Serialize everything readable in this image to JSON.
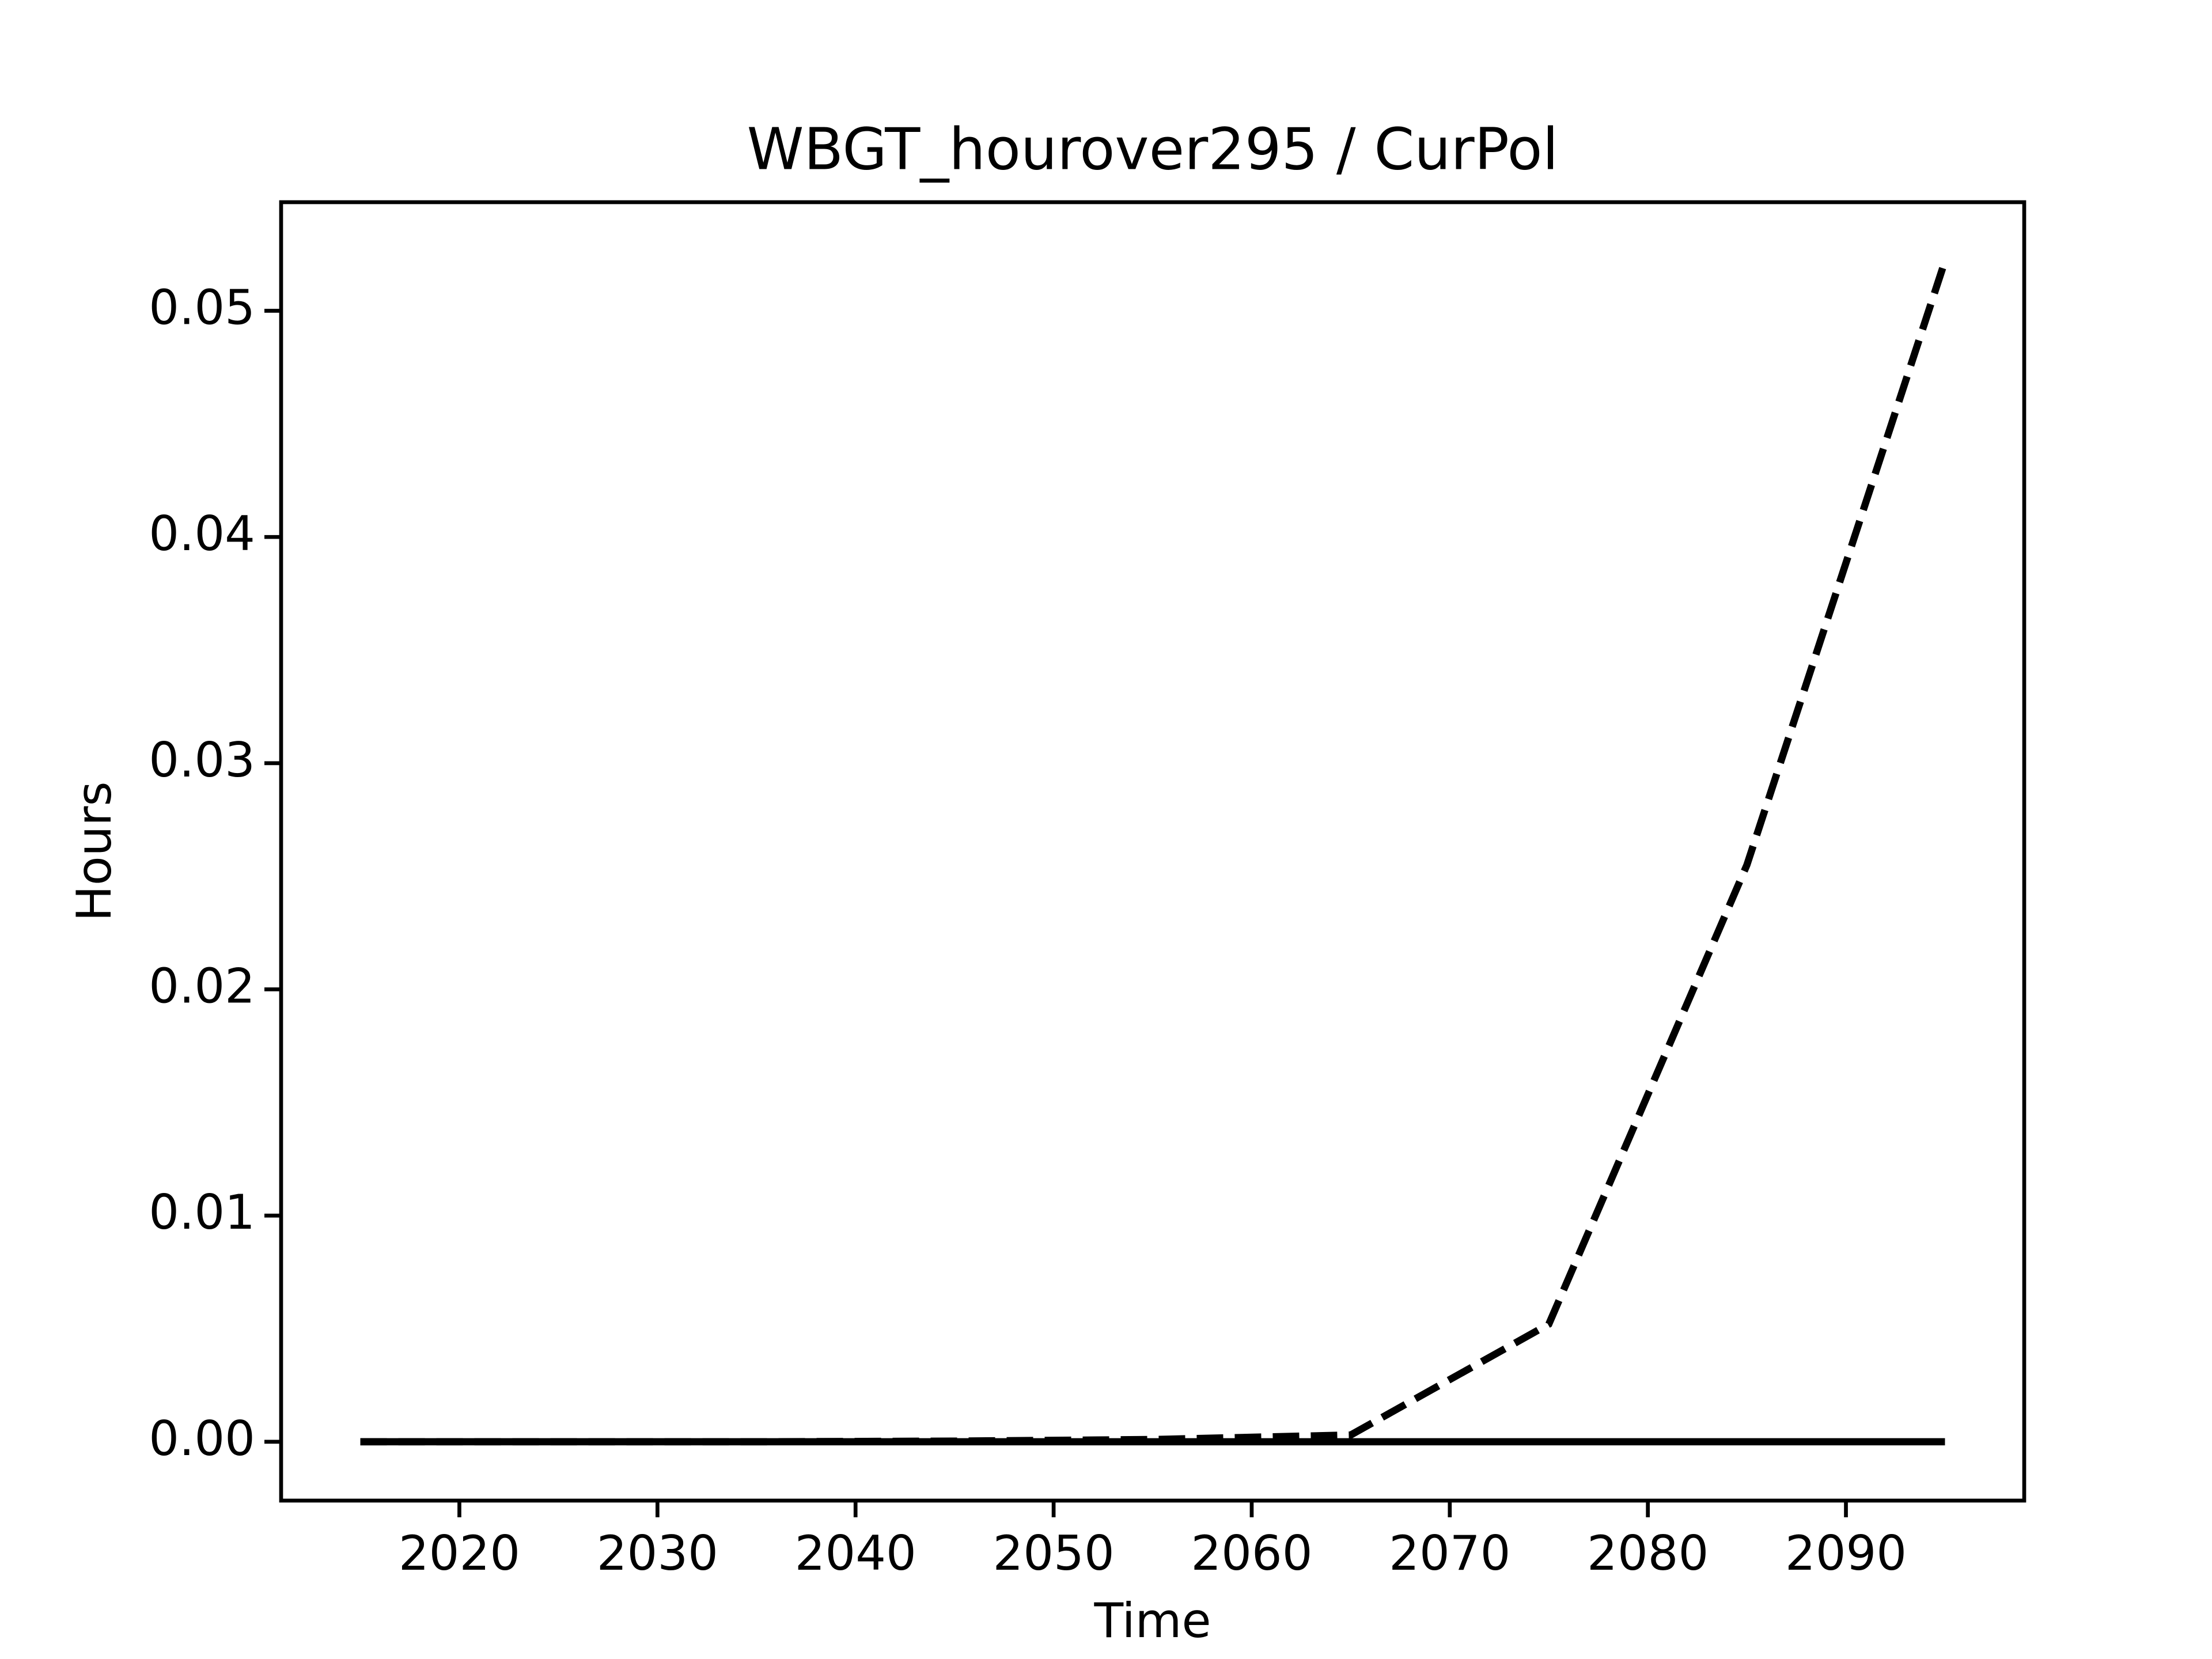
{
  "chart_data": {
    "type": "line",
    "title": "WBGT_hourover295 / CurPol",
    "x_label": "Time",
    "y_label": "Hours",
    "x": [
      2015,
      2025,
      2035,
      2045,
      2055,
      2065,
      2075,
      2085,
      2095
    ],
    "series": [
      {
        "color": "#000000",
        "linestyle": "dashed",
        "values": [
          0,
          0,
          0,
          3e-05,
          0.0001,
          0.0003,
          0.0052,
          0.0255,
          0.0522
        ]
      },
      {
        "color": "#000000",
        "linestyle": "solid",
        "values": [
          0,
          0,
          0,
          0,
          0,
          0,
          0,
          0,
          0
        ]
      }
    ],
    "xlim": [
      2011,
      2099
    ],
    "xticks": [
      2020,
      2030,
      2040,
      2050,
      2060,
      2070,
      2080,
      2090
    ],
    "ylim": [
      -0.0026,
      0.0548
    ],
    "yticks": [
      {
        "value": 0,
        "label": "0.00"
      },
      {
        "value": 0.01,
        "label": "0.01"
      },
      {
        "value": 0.02,
        "label": "0.02"
      },
      {
        "value": 0.03,
        "label": "0.03"
      },
      {
        "value": 0.04,
        "label": "0.04"
      },
      {
        "value": 0.05,
        "label": "0.05"
      }
    ],
    "grid": false
  }
}
